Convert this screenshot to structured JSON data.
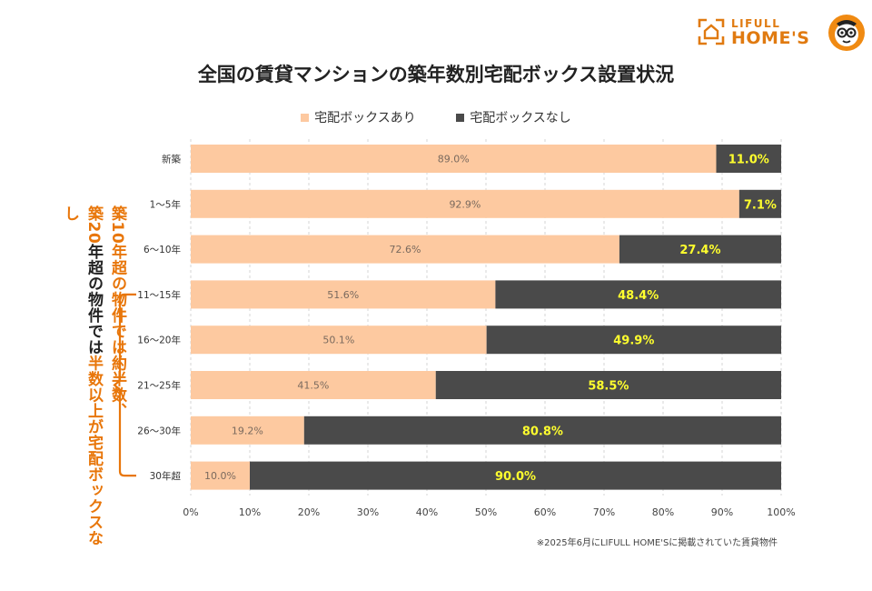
{
  "logo": {
    "line1": "LIFULL",
    "line2": "HOME'S",
    "color": "#e07a10",
    "house_icon": "house-outline-icon",
    "mascot_icon": "mascot-face-icon"
  },
  "colors": {
    "with_box": "#fdc9a0",
    "without_box": "#4a4a4a",
    "value_highlight": "#ffff2e",
    "accent": "#e8760a"
  },
  "side_note": {
    "line1_prefix": "築",
    "line1_number": "10",
    "line1_rest": "年超の物件では約半数、",
    "line2_prefix": "築",
    "line2_number": "20",
    "line2_mid": "年超の物件では",
    "line2_emph": "半数以上が宅配ボックスなし"
  },
  "footnote": "※2025年6月にLIFULL HOME'Sに掲載されていた賃貸物件",
  "chart_data": {
    "type": "bar",
    "orientation": "horizontal",
    "stacked": true,
    "title": "全国の賃貸マンションの築年数別宅配ボックス設置状況",
    "categories": [
      "新築",
      "1〜5年",
      "6〜10年",
      "11〜15年",
      "16〜20年",
      "21〜25年",
      "26〜30年",
      "30年超"
    ],
    "series": [
      {
        "name": "宅配ボックスあり",
        "values": [
          89.0,
          92.9,
          72.6,
          51.6,
          50.1,
          41.5,
          19.2,
          10.0
        ]
      },
      {
        "name": "宅配ボックスなし",
        "values": [
          11.0,
          7.1,
          27.4,
          48.4,
          49.9,
          58.5,
          80.8,
          90.0
        ]
      }
    ],
    "data_labels": {
      "with_box": [
        "89.0%",
        "92.9%",
        "72.6%",
        "51.6%",
        "50.1%",
        "41.5%",
        "19.2%",
        "10.0%"
      ],
      "without_box": [
        "11.0%",
        "7.1%",
        "27.4%",
        "48.4%",
        "49.9%",
        "58.5%",
        "80.8%",
        "90.0%"
      ]
    },
    "x_ticks": [
      "0%",
      "10%",
      "20%",
      "30%",
      "40%",
      "50%",
      "60%",
      "70%",
      "80%",
      "90%",
      "100%"
    ],
    "xlim": [
      0,
      100
    ],
    "xlabel": "",
    "ylabel": "",
    "grid": true,
    "legend_position": "top-center",
    "bracket_categories": [
      "11〜15年",
      "30年超"
    ]
  }
}
